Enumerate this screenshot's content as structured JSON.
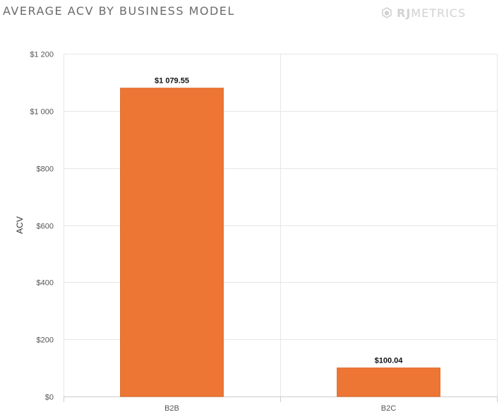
{
  "header": {
    "title": "AVERAGE ACV BY BUSINESS MODEL",
    "brand_strong": "RJ",
    "brand_rest": "METRICS",
    "brand_icon": "hexagon-logo-icon"
  },
  "colors": {
    "bar": "#ed7634",
    "grid": "#e6e6e6",
    "axis_text": "#555555"
  },
  "chart_data": {
    "type": "bar",
    "categories": [
      "B2B",
      "B2C"
    ],
    "values": [
      1079.55,
      100.04
    ],
    "value_labels": [
      "$1 079.55",
      "$100.04"
    ],
    "ylabel": "ACV",
    "xlabel": "",
    "ylim": [
      0,
      1200
    ],
    "yticks": [
      0,
      200,
      400,
      600,
      800,
      1000,
      1200
    ],
    "ytick_labels": [
      "$0",
      "$200",
      "$400",
      "$600",
      "$800",
      "$1 000",
      "$1 200"
    ],
    "grid": true
  }
}
